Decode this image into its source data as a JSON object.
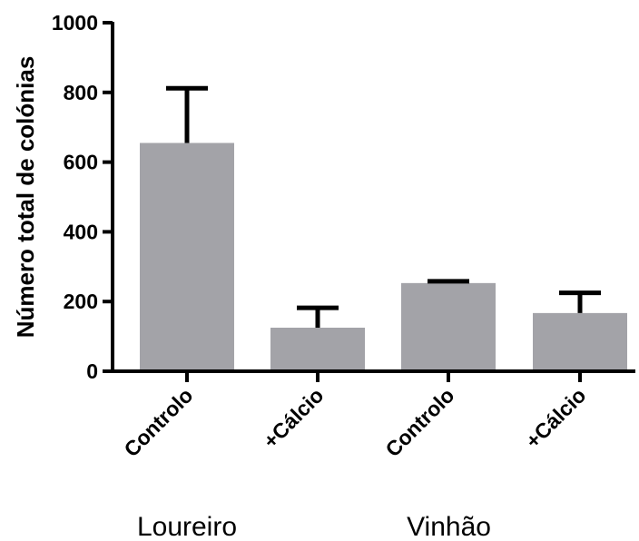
{
  "chart_data": {
    "type": "bar",
    "categories": [
      "Controlo",
      "+Cálcio",
      "Controlo",
      "+Cálcio"
    ],
    "groups": [
      {
        "label": "Loureiro",
        "categories": [
          0,
          1
        ]
      },
      {
        "label": "Vinhão",
        "categories": [
          2,
          3
        ]
      }
    ],
    "values": [
      655,
      125,
      253,
      167
    ],
    "errors": [
      157,
      57,
      5,
      58
    ],
    "title": "",
    "xlabel": "",
    "ylabel": "Número total de colónias",
    "ylim": [
      0,
      1000
    ],
    "yticks": [
      0,
      200,
      400,
      600,
      800,
      1000
    ],
    "grid": false,
    "bar_color": "#a3a3a8",
    "axis_color": "#000000"
  }
}
